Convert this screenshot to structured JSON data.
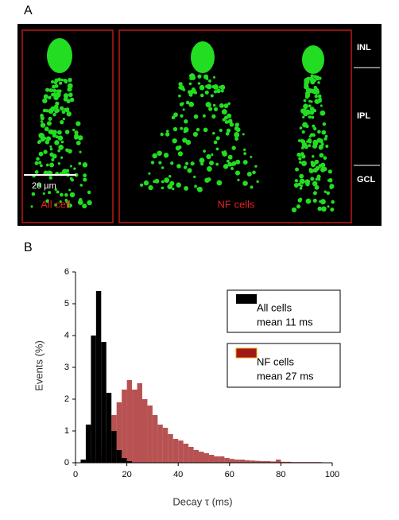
{
  "panel_a": {
    "label": "A",
    "layers": [
      "INL",
      "IPL",
      "GCL"
    ],
    "scale_bar": "20 µm",
    "groups": [
      "All cell",
      "NF cells"
    ]
  },
  "chart_data": {
    "type": "histogram",
    "label": "B",
    "x_label": "Decay τ (ms)",
    "y_label": "Events (%)",
    "bins": [
      0,
      2,
      4,
      6,
      8,
      10,
      12,
      14,
      16,
      18,
      20,
      22,
      24,
      26,
      28,
      30,
      32,
      34,
      36,
      38,
      40,
      42,
      44,
      46,
      48,
      50,
      52,
      54,
      56,
      58,
      60,
      62,
      64,
      66,
      68,
      70,
      72,
      74,
      76,
      78,
      80,
      82,
      84,
      86,
      88,
      90,
      92,
      94,
      96,
      98,
      100
    ],
    "series": [
      {
        "name": "All cells",
        "note": "mean 11 ms",
        "color": "#000000",
        "values": [
          0,
          0.1,
          1.2,
          4.0,
          5.4,
          3.8,
          2.2,
          1.0,
          0.4,
          0.15,
          0.05,
          0,
          0,
          0,
          0,
          0,
          0,
          0,
          0,
          0,
          0,
          0,
          0,
          0,
          0,
          0,
          0,
          0,
          0,
          0,
          0,
          0,
          0,
          0,
          0,
          0,
          0,
          0,
          0,
          0,
          0,
          0,
          0,
          0,
          0,
          0,
          0,
          0,
          0,
          0
        ]
      },
      {
        "name": "NF cells",
        "note": "mean 27 ms",
        "color": "#a01818",
        "values": [
          0,
          0,
          0.05,
          0.1,
          0.3,
          0.6,
          1.0,
          1.5,
          1.9,
          2.3,
          2.6,
          2.3,
          2.5,
          2.0,
          1.8,
          1.5,
          1.2,
          1.1,
          0.9,
          0.75,
          0.7,
          0.6,
          0.5,
          0.4,
          0.35,
          0.3,
          0.25,
          0.2,
          0.2,
          0.15,
          0.12,
          0.1,
          0.1,
          0.08,
          0.07,
          0.06,
          0.05,
          0.05,
          0.04,
          0.1,
          0.03,
          0.03,
          0.02,
          0.02,
          0.02,
          0.02,
          0.02,
          0.02,
          0,
          0
        ]
      }
    ],
    "xlim": [
      0,
      100
    ],
    "xticks": [
      0,
      20,
      40,
      60,
      80,
      100
    ],
    "ylim": [
      0,
      6
    ],
    "yticks": [
      0,
      1,
      2,
      3,
      4,
      5,
      6
    ]
  }
}
